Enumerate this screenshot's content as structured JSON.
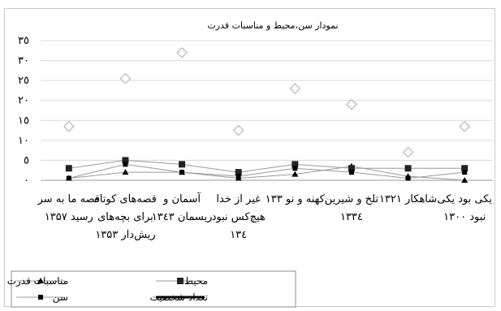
{
  "chart_data": {
    "type": "line",
    "title": "نمودار سن،محیط و مناسبات قدرت",
    "categories": [
      "یکی بود یکی نبود ۱۳۰۰",
      "شاهکار ۱۳۲۱",
      "تلخ و شیرین ۱۳۳٤",
      "کهنه و نو ۱۳۳",
      "غیر از خدا هیچ‌کس نبود ۱۳٤",
      "آسمان و ریسمان ۱۳٤۳",
      "قصه‌های کوتاه برای بچه‌های ریش‌دار ۱۳۵۳",
      "قصه ما به سر رسید ۱۳۵۷"
    ],
    "y_tick_labels": [
      "۰",
      "٥",
      "١٠",
      "١٥",
      "٢٠",
      "٢٥",
      "٣٠",
      "٣٥"
    ],
    "ylim": [
      0,
      35
    ],
    "grid": "horizontal",
    "legend_position": "bottom",
    "series": [
      {
        "name": "مناسبات قدرت",
        "values": [
          0,
          1,
          3.5,
          1.5,
          0.5,
          2,
          2,
          0.5
        ],
        "color": "#000000",
        "marker": "triangle"
      },
      {
        "name": "محیط",
        "values": [
          3,
          3,
          3,
          4,
          2,
          4,
          5,
          3
        ],
        "color": "#000000",
        "marker": "square"
      },
      {
        "name": "سن",
        "values": [
          2,
          0.5,
          2,
          3,
          1,
          2,
          4,
          0.5
        ],
        "color": "#000000",
        "marker": "small-square"
      },
      {
        "name": "تعداد شخصیت",
        "values": [
          13.5,
          7,
          19,
          23,
          12.5,
          32,
          25.5,
          13.5
        ],
        "color": "#aaaaaa",
        "marker": "diamond"
      }
    ]
  }
}
